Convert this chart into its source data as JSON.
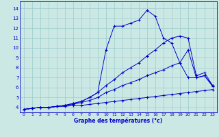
{
  "xlabel": "Graphe des températures (°c)",
  "bg_color": "#cce8e4",
  "grid_color": "#99cccc",
  "line_color": "#0000cc",
  "xlim": [
    -0.5,
    23.5
  ],
  "ylim": [
    3.5,
    14.7
  ],
  "xticks": [
    0,
    1,
    2,
    3,
    4,
    5,
    6,
    7,
    8,
    9,
    10,
    11,
    12,
    13,
    14,
    15,
    16,
    17,
    18,
    19,
    20,
    21,
    22,
    23
  ],
  "yticks": [
    4,
    5,
    6,
    7,
    8,
    9,
    10,
    11,
    12,
    13,
    14
  ],
  "line1_x": [
    0,
    1,
    2,
    3,
    4,
    5,
    6,
    7,
    8,
    9,
    10,
    11,
    12,
    13,
    14,
    15,
    16,
    17,
    18,
    19,
    20,
    21,
    22,
    23
  ],
  "line1_y": [
    3.8,
    3.9,
    4.0,
    4.0,
    4.1,
    4.1,
    4.2,
    4.2,
    4.3,
    4.4,
    4.5,
    4.6,
    4.7,
    4.8,
    4.9,
    5.0,
    5.1,
    5.2,
    5.3,
    5.4,
    5.5,
    5.6,
    5.7,
    5.8
  ],
  "line2_x": [
    0,
    1,
    2,
    3,
    4,
    5,
    6,
    7,
    8,
    9,
    10,
    11,
    12,
    13,
    14,
    15,
    16,
    17,
    18,
    19,
    20,
    21,
    22,
    23
  ],
  "line2_y": [
    3.8,
    3.9,
    4.0,
    4.0,
    4.1,
    4.2,
    4.3,
    4.5,
    4.7,
    5.0,
    5.5,
    5.8,
    6.2,
    6.5,
    6.8,
    7.2,
    7.5,
    7.8,
    8.2,
    8.5,
    9.8,
    7.0,
    7.2,
    6.2
  ],
  "line3_x": [
    0,
    1,
    2,
    3,
    4,
    5,
    6,
    7,
    8,
    9,
    10,
    11,
    12,
    13,
    14,
    15,
    16,
    17,
    18,
    19,
    20,
    21,
    22,
    23
  ],
  "line3_y": [
    3.8,
    3.9,
    4.0,
    4.0,
    4.1,
    4.2,
    4.4,
    4.6,
    5.0,
    5.5,
    6.2,
    6.8,
    7.5,
    8.0,
    8.5,
    9.2,
    9.8,
    10.5,
    11.0,
    11.2,
    11.0,
    7.2,
    7.5,
    6.2
  ],
  "line4_x": [
    0,
    1,
    2,
    3,
    4,
    5,
    6,
    7,
    8,
    9,
    10,
    11,
    12,
    13,
    14,
    15,
    16,
    17,
    18,
    19,
    20,
    21,
    22,
    23
  ],
  "line4_y": [
    3.8,
    3.9,
    4.0,
    4.0,
    4.1,
    4.2,
    4.4,
    4.6,
    5.0,
    5.5,
    9.8,
    12.2,
    12.2,
    12.5,
    12.8,
    13.8,
    13.2,
    11.0,
    10.5,
    8.5,
    7.0,
    7.0,
    7.2,
    6.1
  ]
}
